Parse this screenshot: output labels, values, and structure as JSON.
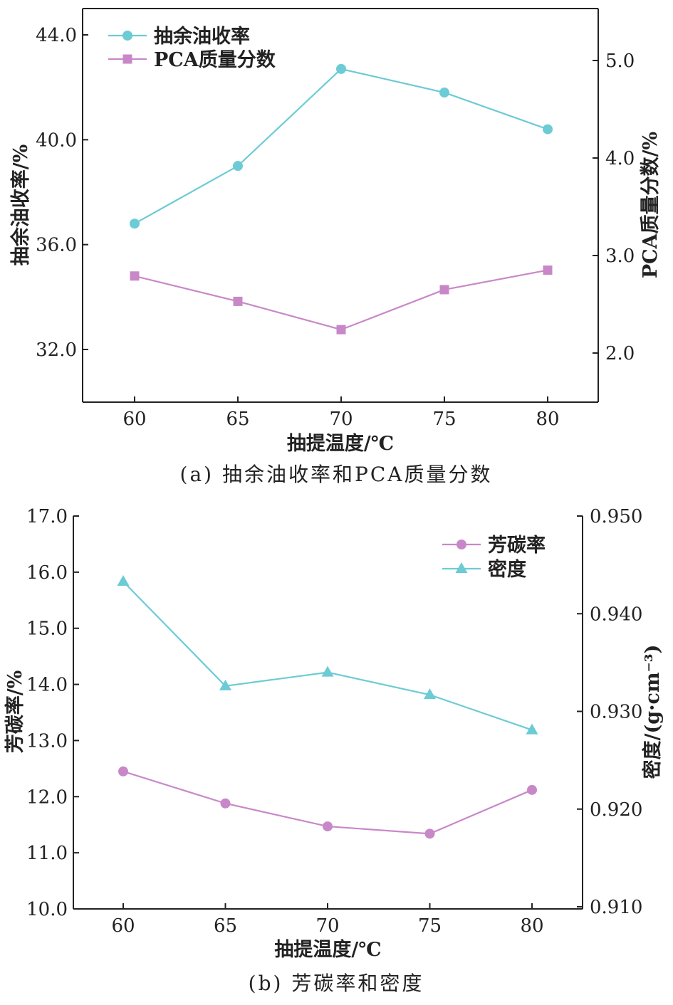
{
  "colors": {
    "cyan": "#6ccbd5",
    "pink": "#c888c8"
  },
  "chart_data": [
    {
      "type": "line",
      "caption": "(a) 抽余油收率和PCA质量分数",
      "xlabel": "抽提温度/℃",
      "ylabel": "抽余油收率/%",
      "y2label": "PCA质量分数/%",
      "categories": [
        60,
        65,
        70,
        75,
        80
      ],
      "xticks": [
        "60",
        "65",
        "70",
        "75",
        "80"
      ],
      "ylim": [
        29.2,
        45.0
      ],
      "yticks": [
        "32.0",
        "36.0",
        "40.0",
        "44.0"
      ],
      "y2lim": [
        1.5,
        5.5
      ],
      "y2ticks": [
        "2.0",
        "3.0",
        "4.0",
        "5.0"
      ],
      "legend_position": "top-left",
      "series": [
        {
          "name": "抽余油收率",
          "axis": "left",
          "marker": "circle",
          "color": "#6ccbd5",
          "values": [
            36.8,
            39.0,
            42.7,
            41.8,
            40.4
          ]
        },
        {
          "name": "PCA质量分数",
          "axis": "right",
          "marker": "square",
          "color": "#c888c8",
          "values": [
            2.79,
            2.53,
            2.24,
            2.65,
            2.85
          ]
        }
      ]
    },
    {
      "type": "line",
      "caption": "(b) 芳碳率和密度",
      "xlabel": "抽提温度/℃",
      "ylabel": "芳碳率/%",
      "y2label": "密度/(g·cm⁻³)",
      "categories": [
        60,
        65,
        70,
        75,
        80
      ],
      "xticks": [
        "60",
        "65",
        "70",
        "75",
        "80"
      ],
      "ylim": [
        10.0,
        17.0
      ],
      "yticks": [
        "10.0",
        "11.0",
        "12.0",
        "13.0",
        "14.0",
        "15.0",
        "16.0",
        "17.0"
      ],
      "y2lim": [
        0.91,
        0.95
      ],
      "y2ticks": [
        "0.910",
        "0.920",
        "0.930",
        "0.940",
        "0.950"
      ],
      "legend_position": "top-right",
      "series": [
        {
          "name": "芳碳率",
          "axis": "left",
          "marker": "circle",
          "color": "#c888c8",
          "values": [
            12.45,
            11.88,
            11.47,
            11.34,
            12.12
          ]
        },
        {
          "name": "密度",
          "axis": "right",
          "marker": "triangle",
          "color": "#6ccbd5",
          "values": [
            0.9433,
            0.9326,
            0.934,
            0.9317,
            0.9281
          ]
        }
      ]
    }
  ]
}
